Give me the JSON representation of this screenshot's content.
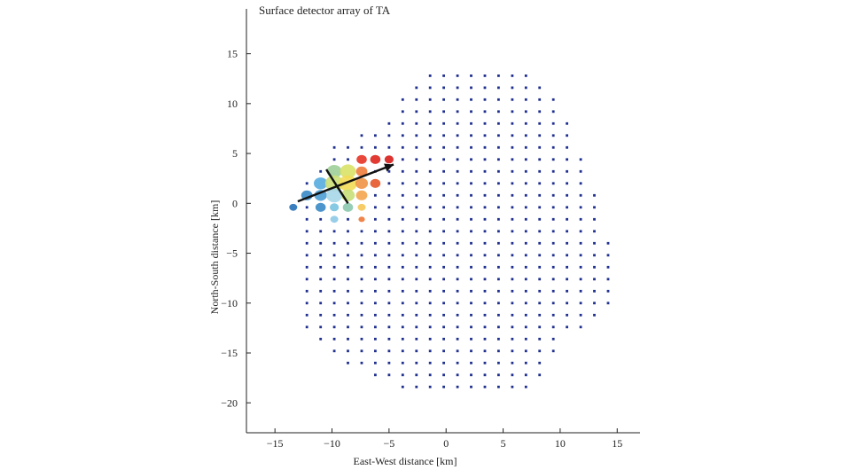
{
  "chart_data": {
    "type": "scatter",
    "title": "Surface detector array of TA",
    "xlabel": "East-West distance [km]",
    "ylabel": "North-South distance [km]",
    "xlim": [
      -17.5,
      17
    ],
    "ylim": [
      -23,
      19.5
    ],
    "xticks": [
      -15,
      -10,
      -5,
      0,
      5,
      10,
      15
    ],
    "yticks": [
      15,
      10,
      5,
      0,
      -5,
      -10,
      -15,
      -20
    ],
    "grid": false,
    "detector_spacing_km": 1.2,
    "detector_color": "#1f2f8f",
    "shower_arrow": {
      "from": [
        -13,
        0.2
      ],
      "to": [
        -4.6,
        3.9
      ],
      "color": "#111111"
    },
    "shower_axis_line": {
      "from": [
        -10.5,
        3.4
      ],
      "to": [
        -8.6,
        0
      ],
      "color": "#111111"
    },
    "hit_detectors": [
      {
        "x": -13.4,
        "y": -0.4,
        "r": 0.35,
        "color": "#2a74b8"
      },
      {
        "x": -12.2,
        "y": 0.8,
        "r": 0.5,
        "color": "#3d8cc8"
      },
      {
        "x": -11.0,
        "y": 2.0,
        "r": 0.6,
        "color": "#5aaee0"
      },
      {
        "x": -11.0,
        "y": 0.8,
        "r": 0.55,
        "color": "#4fa0d6"
      },
      {
        "x": -11.0,
        "y": -0.4,
        "r": 0.45,
        "color": "#3d8cc8"
      },
      {
        "x": -9.8,
        "y": 3.2,
        "r": 0.65,
        "color": "#9fd09a"
      },
      {
        "x": -9.8,
        "y": 2.0,
        "r": 0.8,
        "color": "#cde07a"
      },
      {
        "x": -9.8,
        "y": 0.8,
        "r": 0.7,
        "color": "#a8d8e8"
      },
      {
        "x": -9.8,
        "y": -0.4,
        "r": 0.4,
        "color": "#7cc4e0"
      },
      {
        "x": -9.8,
        "y": -1.6,
        "r": 0.35,
        "color": "#8fcae6"
      },
      {
        "x": -8.6,
        "y": 3.2,
        "r": 0.7,
        "color": "#d9e36a"
      },
      {
        "x": -8.6,
        "y": 2.0,
        "r": 0.8,
        "color": "#f2dc5a"
      },
      {
        "x": -8.6,
        "y": 0.8,
        "r": 0.6,
        "color": "#c8e07a"
      },
      {
        "x": -8.6,
        "y": -0.4,
        "r": 0.45,
        "color": "#8ec9b0"
      },
      {
        "x": -7.4,
        "y": 4.4,
        "r": 0.45,
        "color": "#e8372a"
      },
      {
        "x": -7.4,
        "y": 3.2,
        "r": 0.5,
        "color": "#f08040"
      },
      {
        "x": -7.4,
        "y": 2.0,
        "r": 0.55,
        "color": "#f0964a"
      },
      {
        "x": -7.4,
        "y": 0.8,
        "r": 0.5,
        "color": "#f4a653"
      },
      {
        "x": -7.4,
        "y": -0.4,
        "r": 0.35,
        "color": "#f6c85a"
      },
      {
        "x": -7.4,
        "y": -1.6,
        "r": 0.28,
        "color": "#f07a3a"
      },
      {
        "x": -6.2,
        "y": 4.4,
        "r": 0.45,
        "color": "#e02a22"
      },
      {
        "x": -6.2,
        "y": 2.0,
        "r": 0.45,
        "color": "#e65a2e"
      },
      {
        "x": -5.0,
        "y": 4.4,
        "r": 0.4,
        "color": "#d8221e"
      }
    ]
  }
}
